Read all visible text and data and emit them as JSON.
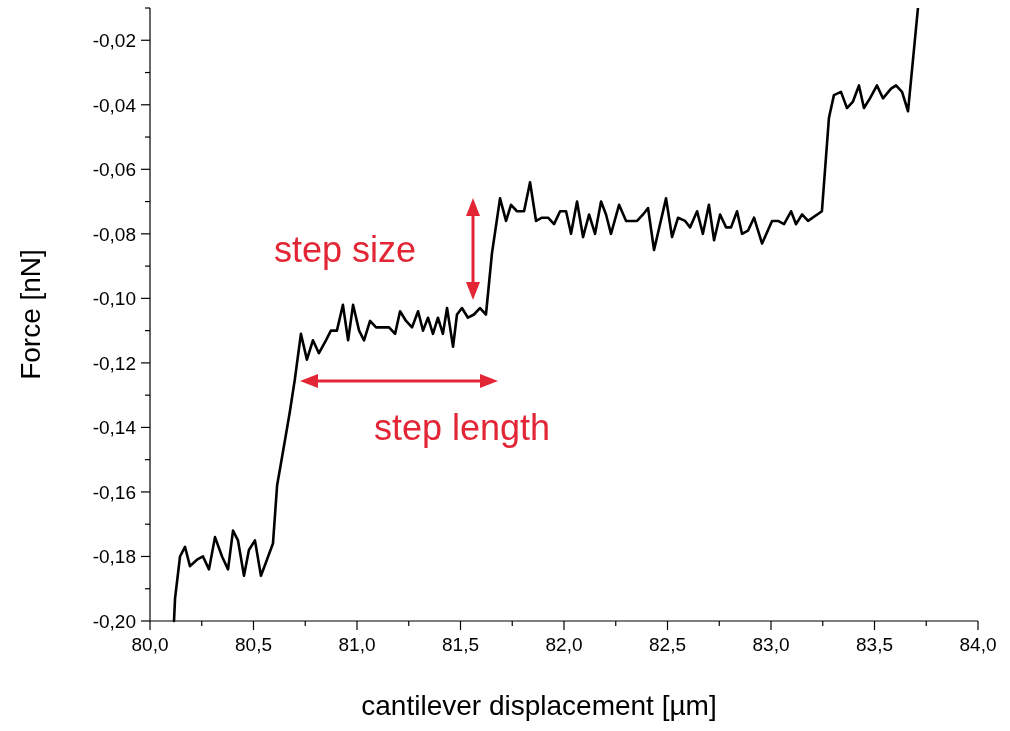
{
  "chart_data": {
    "type": "line",
    "xlabel": "cantilever displacement [µm]",
    "ylabel": "Force [nN]",
    "xlim": [
      80.0,
      84.0
    ],
    "ylim": [
      -0.2,
      -0.01
    ],
    "xticks": [
      {
        "value": 80.0,
        "label": "80,0"
      },
      {
        "value": 80.25,
        "label": null
      },
      {
        "value": 80.5,
        "label": "80,5"
      },
      {
        "value": 80.75,
        "label": null
      },
      {
        "value": 81.0,
        "label": "81,0"
      },
      {
        "value": 81.25,
        "label": null
      },
      {
        "value": 81.5,
        "label": "81,5"
      },
      {
        "value": 81.75,
        "label": null
      },
      {
        "value": 82.0,
        "label": "82,0"
      },
      {
        "value": 82.25,
        "label": null
      },
      {
        "value": 82.5,
        "label": "82,5"
      },
      {
        "value": 82.75,
        "label": null
      },
      {
        "value": 83.0,
        "label": "83,0"
      },
      {
        "value": 83.25,
        "label": null
      },
      {
        "value": 83.5,
        "label": "83,5"
      },
      {
        "value": 83.75,
        "label": null
      },
      {
        "value": 84.0,
        "label": "84,0"
      }
    ],
    "yticks": [
      {
        "value": -0.2,
        "label": "-0,20"
      },
      {
        "value": -0.19,
        "label": null
      },
      {
        "value": -0.18,
        "label": "-0,18"
      },
      {
        "value": -0.17,
        "label": null
      },
      {
        "value": -0.16,
        "label": "-0,16"
      },
      {
        "value": -0.15,
        "label": null
      },
      {
        "value": -0.14,
        "label": "-0,14"
      },
      {
        "value": -0.13,
        "label": null
      },
      {
        "value": -0.12,
        "label": "-0,12"
      },
      {
        "value": -0.11,
        "label": null
      },
      {
        "value": -0.1,
        "label": "-0,10"
      },
      {
        "value": -0.09,
        "label": null
      },
      {
        "value": -0.08,
        "label": "-0,08"
      },
      {
        "value": -0.07,
        "label": null
      },
      {
        "value": -0.06,
        "label": "-0,06"
      },
      {
        "value": -0.05,
        "label": null
      },
      {
        "value": -0.04,
        "label": "-0,04"
      },
      {
        "value": -0.03,
        "label": null
      },
      {
        "value": -0.02,
        "label": "-0,02"
      },
      {
        "value": -0.01,
        "label": null
      }
    ],
    "grid": false,
    "marker": "none",
    "line_style": "solid",
    "annotations": [
      "step size",
      "step length"
    ],
    "series": [
      {
        "color": "#000000",
        "x": [
          80.116,
          80.121,
          80.145,
          80.169,
          80.193,
          80.227,
          80.256,
          80.285,
          80.314,
          80.348,
          80.377,
          80.401,
          80.425,
          80.454,
          80.478,
          80.507,
          80.536,
          80.594,
          80.614,
          80.652,
          80.676,
          80.7,
          80.729,
          80.758,
          80.787,
          80.816,
          80.85,
          80.874,
          80.903,
          80.932,
          80.957,
          80.981,
          81.01,
          81.034,
          81.063,
          81.092,
          81.121,
          81.155,
          81.184,
          81.208,
          81.237,
          81.266,
          81.295,
          81.319,
          81.343,
          81.367,
          81.391,
          81.415,
          81.435,
          81.464,
          81.483,
          81.507,
          81.536,
          81.565,
          81.594,
          81.623,
          81.652,
          81.691,
          81.72,
          81.744,
          81.773,
          81.807,
          81.836,
          81.865,
          81.894,
          81.923,
          81.952,
          81.981,
          82.01,
          82.034,
          82.063,
          82.092,
          82.121,
          82.15,
          82.179,
          82.203,
          82.227,
          82.266,
          82.3,
          82.329,
          82.353,
          82.382,
          82.406,
          82.435,
          82.464,
          82.493,
          82.522,
          82.551,
          82.585,
          82.609,
          82.643,
          82.671,
          82.7,
          82.725,
          82.754,
          82.783,
          82.807,
          82.836,
          82.86,
          82.889,
          82.918,
          82.957,
          83.005,
          83.034,
          83.063,
          83.097,
          83.121,
          83.15,
          83.179,
          83.246,
          83.28,
          83.304,
          83.338,
          83.367,
          83.396,
          83.425,
          83.449,
          83.478,
          83.512,
          83.541,
          83.58,
          83.604,
          83.633,
          83.662,
          83.71
        ],
        "values": [
          -0.2,
          -0.193,
          -0.18,
          -0.177,
          -0.183,
          -0.181,
          -0.18,
          -0.184,
          -0.174,
          -0.18,
          -0.184,
          -0.172,
          -0.175,
          -0.186,
          -0.178,
          -0.175,
          -0.186,
          -0.176,
          -0.158,
          -0.144,
          -0.135,
          -0.125,
          -0.111,
          -0.119,
          -0.113,
          -0.117,
          -0.113,
          -0.11,
          -0.11,
          -0.102,
          -0.113,
          -0.102,
          -0.11,
          -0.113,
          -0.107,
          -0.109,
          -0.109,
          -0.109,
          -0.111,
          -0.104,
          -0.107,
          -0.109,
          -0.104,
          -0.11,
          -0.106,
          -0.111,
          -0.106,
          -0.111,
          -0.103,
          -0.115,
          -0.105,
          -0.103,
          -0.106,
          -0.105,
          -0.103,
          -0.105,
          -0.086,
          -0.069,
          -0.076,
          -0.071,
          -0.073,
          -0.073,
          -0.064,
          -0.076,
          -0.075,
          -0.075,
          -0.077,
          -0.073,
          -0.073,
          -0.08,
          -0.07,
          -0.081,
          -0.074,
          -0.08,
          -0.07,
          -0.074,
          -0.08,
          -0.071,
          -0.076,
          -0.076,
          -0.076,
          -0.074,
          -0.072,
          -0.085,
          -0.077,
          -0.069,
          -0.081,
          -0.075,
          -0.076,
          -0.078,
          -0.073,
          -0.08,
          -0.071,
          -0.082,
          -0.074,
          -0.078,
          -0.078,
          -0.073,
          -0.08,
          -0.079,
          -0.075,
          -0.083,
          -0.076,
          -0.076,
          -0.077,
          -0.073,
          -0.077,
          -0.074,
          -0.076,
          -0.073,
          -0.044,
          -0.037,
          -0.036,
          -0.041,
          -0.039,
          -0.034,
          -0.041,
          -0.038,
          -0.034,
          -0.038,
          -0.035,
          -0.034,
          -0.036,
          -0.042,
          -0.01
        ]
      }
    ]
  }
}
